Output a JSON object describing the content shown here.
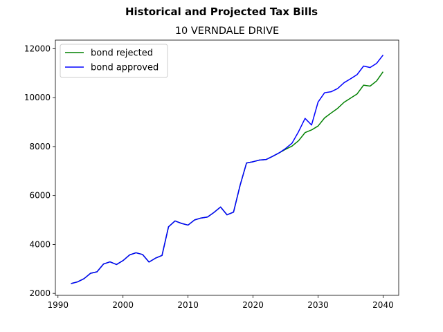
{
  "figure": {
    "suptitle": "Historical and Projected Tax Bills",
    "title": "10 VERNDALE DRIVE"
  },
  "chart_data": {
    "type": "line",
    "title": "10 VERNDALE DRIVE",
    "suptitle": "Historical and Projected Tax Bills",
    "xlabel": "",
    "ylabel": "",
    "xlim": [
      1989.6,
      2042.4
    ],
    "ylim": [
      1920,
      12350
    ],
    "xticks": [
      1990,
      2000,
      2010,
      2020,
      2030,
      2040
    ],
    "yticks": [
      2000,
      4000,
      6000,
      8000,
      10000,
      12000
    ],
    "grid": false,
    "legend": {
      "position": "top-left",
      "entries": [
        "bond rejected",
        "bond approved"
      ]
    },
    "series": [
      {
        "name": "bond rejected",
        "color": "#008000",
        "x": [
          1992,
          1993,
          1994,
          1995,
          1996,
          1997,
          1998,
          1999,
          2000,
          2001,
          2002,
          2003,
          2004,
          2005,
          2006,
          2007,
          2008,
          2009,
          2010,
          2011,
          2012,
          2013,
          2014,
          2015,
          2016,
          2017,
          2018,
          2019,
          2020,
          2021,
          2022,
          2023,
          2024,
          2025,
          2026,
          2027,
          2028,
          2029,
          2030,
          2031,
          2032,
          2033,
          2034,
          2035,
          2036,
          2037,
          2038,
          2039,
          2040
        ],
        "y": [
          2400,
          2470,
          2600,
          2820,
          2880,
          3200,
          3290,
          3180,
          3340,
          3570,
          3660,
          3590,
          3280,
          3440,
          3550,
          4720,
          4960,
          4860,
          4790,
          5000,
          5080,
          5120,
          5310,
          5530,
          5210,
          5320,
          6410,
          7330,
          7380,
          7450,
          7470,
          7600,
          7740,
          7890,
          8020,
          8240,
          8570,
          8680,
          8840,
          9170,
          9370,
          9560,
          9810,
          9980,
          10150,
          10510,
          10470,
          10680,
          11060
        ]
      },
      {
        "name": "bond approved",
        "color": "#0000ff",
        "x": [
          1992,
          1993,
          1994,
          1995,
          1996,
          1997,
          1998,
          1999,
          2000,
          2001,
          2002,
          2003,
          2004,
          2005,
          2006,
          2007,
          2008,
          2009,
          2010,
          2011,
          2012,
          2013,
          2014,
          2015,
          2016,
          2017,
          2018,
          2019,
          2020,
          2021,
          2022,
          2023,
          2024,
          2025,
          2026,
          2027,
          2028,
          2029,
          2030,
          2031,
          2032,
          2033,
          2034,
          2035,
          2036,
          2037,
          2038,
          2039,
          2040
        ],
        "y": [
          2400,
          2470,
          2600,
          2820,
          2880,
          3200,
          3290,
          3180,
          3340,
          3570,
          3660,
          3590,
          3280,
          3440,
          3550,
          4720,
          4960,
          4860,
          4790,
          5000,
          5080,
          5120,
          5310,
          5530,
          5210,
          5320,
          6410,
          7330,
          7380,
          7450,
          7470,
          7600,
          7740,
          7920,
          8140,
          8610,
          9150,
          8880,
          9820,
          10200,
          10240,
          10370,
          10610,
          10770,
          10940,
          11290,
          11230,
          11400,
          11740
        ]
      }
    ]
  }
}
